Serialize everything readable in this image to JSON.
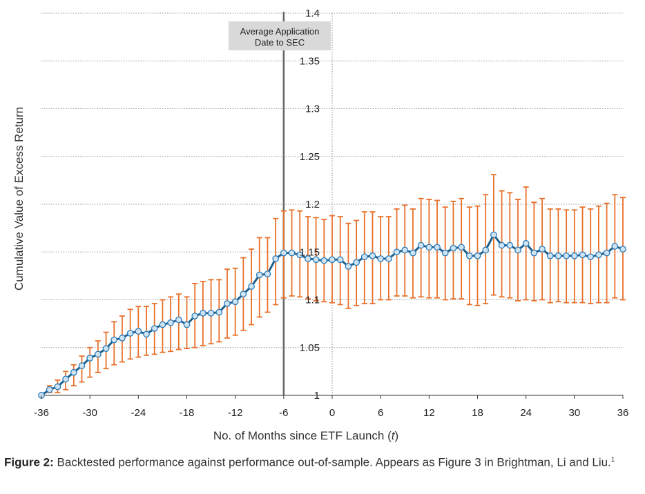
{
  "chart_data": {
    "type": "line",
    "xlabel_main": "No. of Months since ETF Launch (",
    "xlabel_var": "t",
    "xlabel_end": ")",
    "ylabel": "Cumulative Value of Excess Return",
    "xlim": [
      -36,
      36
    ],
    "ylim": [
      1.0,
      1.4
    ],
    "x_ticks": [
      "-36",
      "-30",
      "-24",
      "-18",
      "-12",
      "-6",
      "0",
      "6",
      "12",
      "18",
      "24",
      "30",
      "36"
    ],
    "y_ticks": [
      "1",
      "1.05",
      "1.1",
      "1.15",
      "1.2",
      "1.25",
      "1.3",
      "1.35",
      "1.4"
    ],
    "grid": "horizontal dotted",
    "vline": {
      "x": -6,
      "label_line1": "Average Application",
      "label_line2": "Date to SEC"
    },
    "colors": {
      "line": "#1f5f8b",
      "marker": "#2a7ab8",
      "error_bar": "#e8702a",
      "vline": "#666666",
      "annotation_bg": "#d9d9d9"
    },
    "series": [
      {
        "x": [
          -36,
          -35,
          -34,
          -33,
          -32,
          -31,
          -30,
          -29,
          -28,
          -27,
          -26,
          -25,
          -24,
          -23,
          -22,
          -21,
          -20,
          -19,
          -18,
          -17,
          -16,
          -15,
          -14,
          -13,
          -12,
          -11,
          -10,
          -9,
          -8,
          -7,
          -6,
          -5,
          -4,
          -3,
          -2,
          -1,
          0,
          1,
          2,
          3,
          4,
          5,
          6,
          7,
          8,
          9,
          10,
          11,
          12,
          13,
          14,
          15,
          16,
          17,
          18,
          19,
          20,
          21,
          22,
          23,
          24,
          25,
          26,
          27,
          28,
          29,
          30,
          31,
          32,
          33,
          34,
          35,
          36
        ],
        "y": [
          1.0,
          1.006,
          1.009,
          1.017,
          1.024,
          1.031,
          1.039,
          1.043,
          1.049,
          1.058,
          1.06,
          1.065,
          1.067,
          1.064,
          1.07,
          1.074,
          1.076,
          1.079,
          1.074,
          1.083,
          1.086,
          1.086,
          1.087,
          1.096,
          1.098,
          1.106,
          1.114,
          1.126,
          1.127,
          1.143,
          1.149,
          1.149,
          1.147,
          1.143,
          1.142,
          1.141,
          1.142,
          1.142,
          1.135,
          1.139,
          1.145,
          1.146,
          1.143,
          1.143,
          1.15,
          1.152,
          1.149,
          1.157,
          1.155,
          1.155,
          1.149,
          1.154,
          1.155,
          1.146,
          1.146,
          1.152,
          1.168,
          1.157,
          1.157,
          1.152,
          1.159,
          1.149,
          1.153,
          1.146,
          1.146,
          1.146,
          1.146,
          1.147,
          1.145,
          1.147,
          1.149,
          1.156,
          1.153
        ],
        "err_low": [
          1.0,
          1.003,
          1.003,
          1.006,
          1.01,
          1.014,
          1.019,
          1.024,
          1.028,
          1.032,
          1.035,
          1.038,
          1.04,
          1.042,
          1.043,
          1.045,
          1.046,
          1.048,
          1.049,
          1.05,
          1.052,
          1.054,
          1.056,
          1.06,
          1.063,
          1.068,
          1.074,
          1.082,
          1.087,
          1.095,
          1.102,
          1.104,
          1.103,
          1.101,
          1.099,
          1.098,
          1.097,
          1.095,
          1.091,
          1.094,
          1.096,
          1.096,
          1.1,
          1.1,
          1.104,
          1.104,
          1.102,
          1.103,
          1.102,
          1.102,
          1.1,
          1.101,
          1.101,
          1.095,
          1.094,
          1.096,
          1.105,
          1.103,
          1.102,
          1.099,
          1.1,
          1.099,
          1.1,
          1.097,
          1.098,
          1.097,
          1.097,
          1.097,
          1.096,
          1.097,
          1.097,
          1.102,
          1.1
        ],
        "err_high": [
          1.0,
          1.01,
          1.016,
          1.025,
          1.032,
          1.041,
          1.05,
          1.057,
          1.066,
          1.077,
          1.083,
          1.09,
          1.093,
          1.093,
          1.096,
          1.1,
          1.103,
          1.106,
          1.103,
          1.117,
          1.119,
          1.121,
          1.121,
          1.132,
          1.133,
          1.144,
          1.153,
          1.165,
          1.165,
          1.185,
          1.193,
          1.194,
          1.193,
          1.187,
          1.186,
          1.184,
          1.188,
          1.187,
          1.18,
          1.183,
          1.192,
          1.192,
          1.187,
          1.187,
          1.195,
          1.199,
          1.195,
          1.206,
          1.205,
          1.204,
          1.197,
          1.203,
          1.206,
          1.197,
          1.198,
          1.21,
          1.231,
          1.214,
          1.212,
          1.205,
          1.218,
          1.202,
          1.206,
          1.195,
          1.195,
          1.194,
          1.194,
          1.197,
          1.195,
          1.198,
          1.201,
          1.21,
          1.207
        ]
      }
    ]
  },
  "caption": {
    "label": "Figure 2:",
    "text": " Backtested performance against performance out-of-sample. Appears as Figure 3 in Brightman, Li and Liu.",
    "footnote": "1"
  }
}
